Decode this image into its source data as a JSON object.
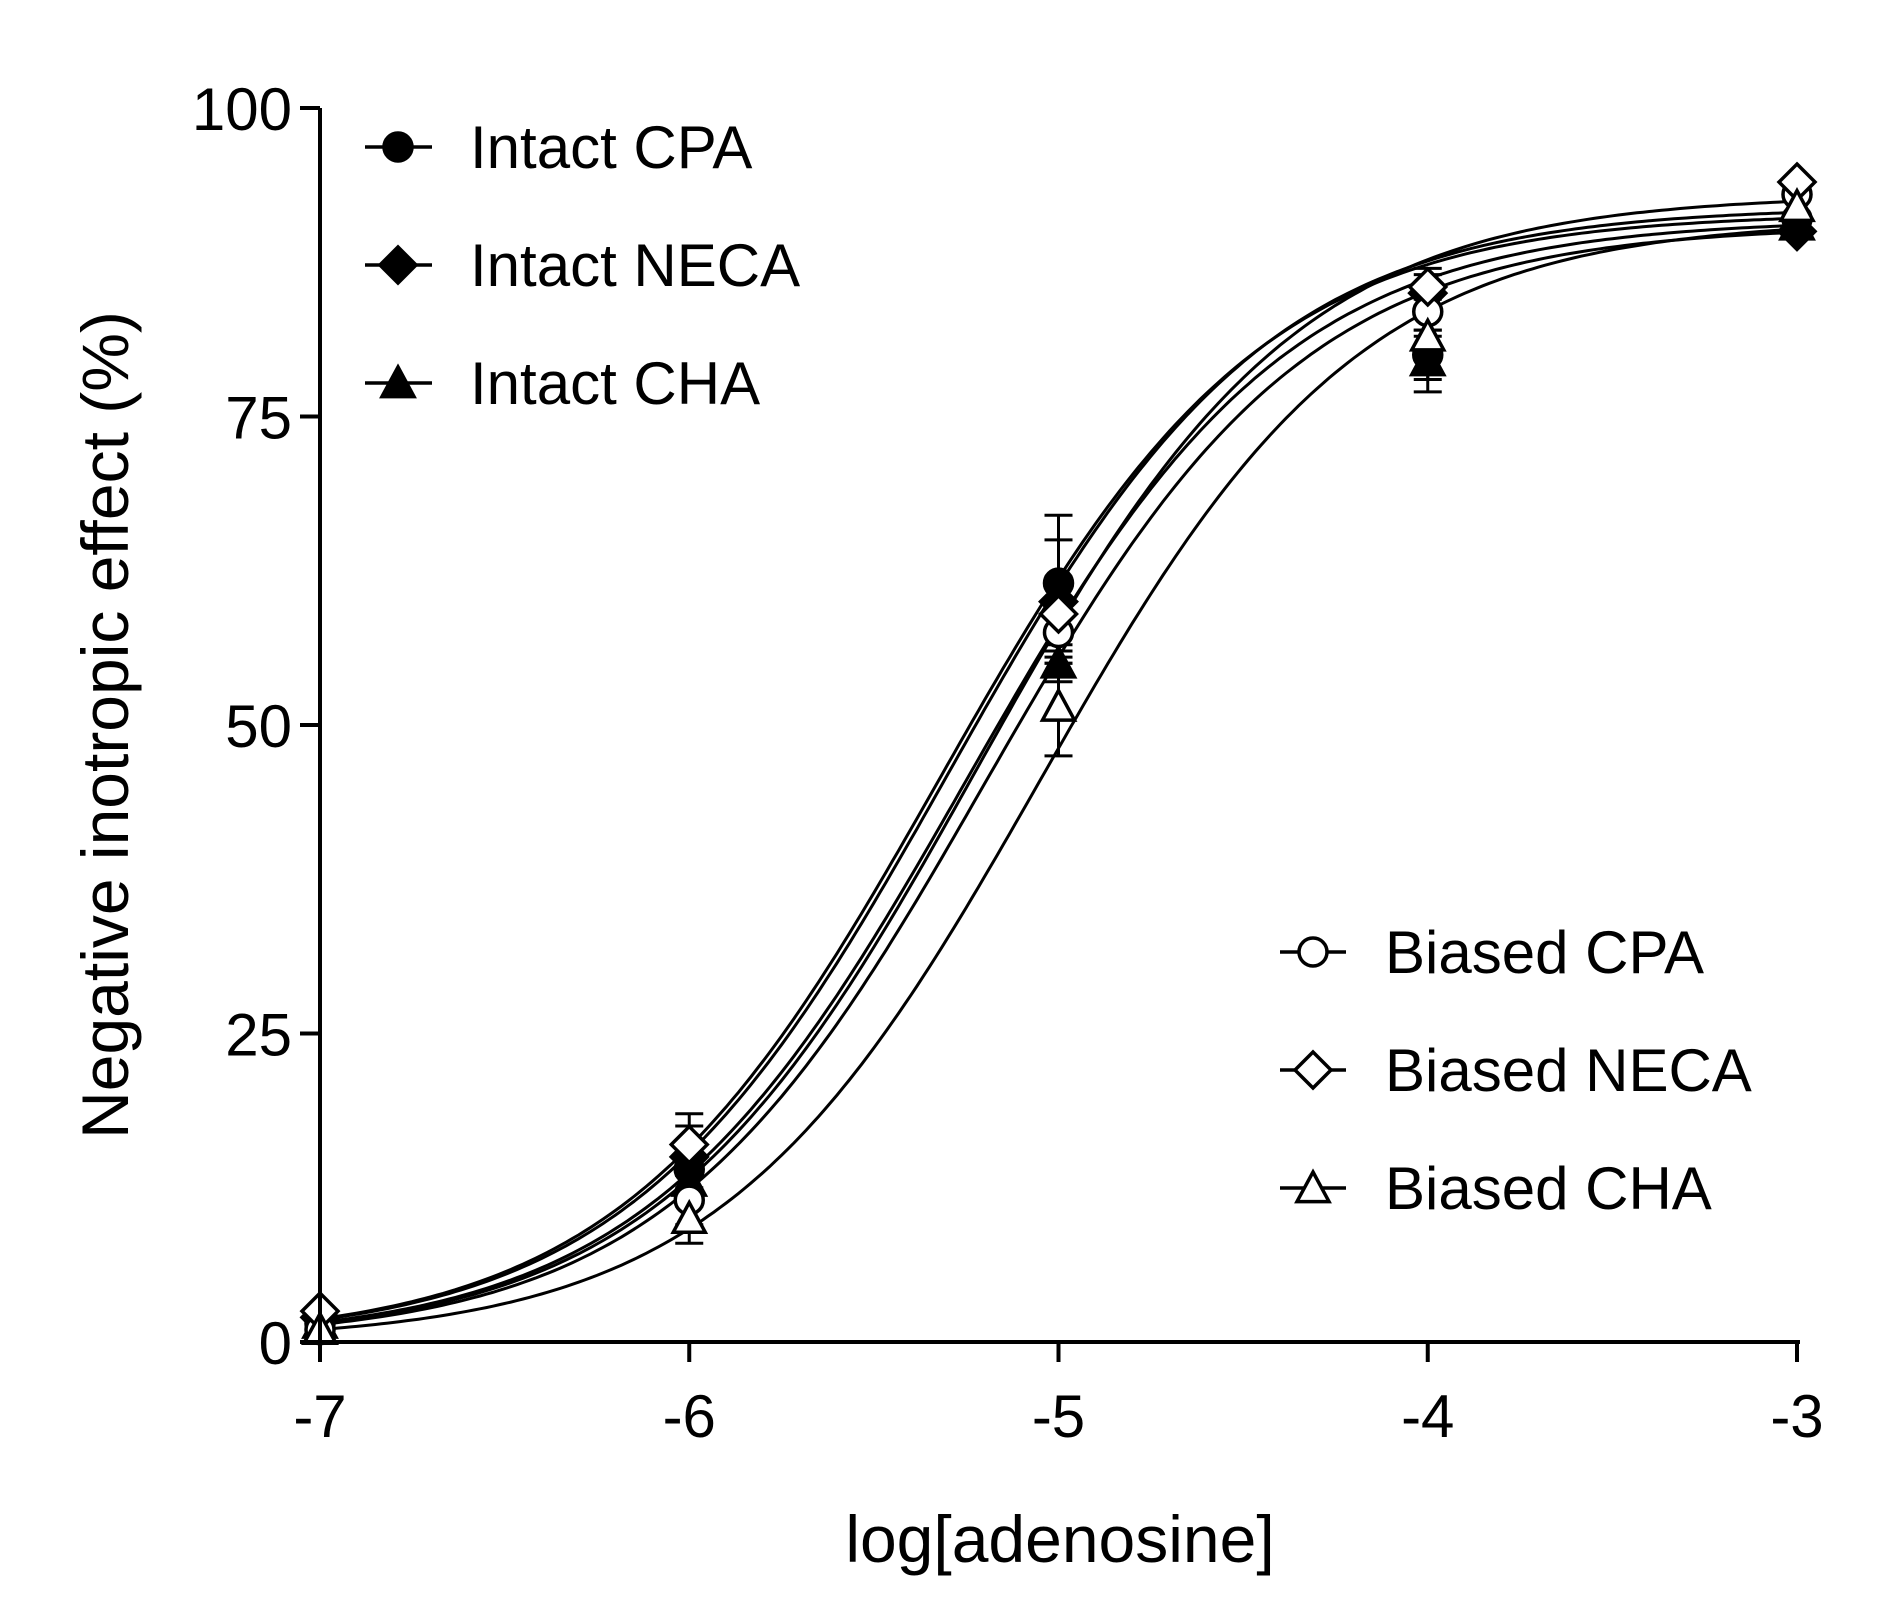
{
  "chart_data": {
    "type": "line",
    "xlabel": "log[adenosine]",
    "ylabel": "Negative inotropic effect (%)",
    "xlim": [
      -7,
      -3
    ],
    "ylim": [
      0,
      100
    ],
    "xticks": [
      -7,
      -6,
      -5,
      -4,
      -3
    ],
    "yticks": [
      0,
      25,
      50,
      75,
      100
    ],
    "xtick_labels": [
      "-7",
      "-6",
      "-5",
      "-4",
      "-3"
    ],
    "ytick_labels": [
      "0",
      "25",
      "50",
      "75",
      "100"
    ],
    "grid": false,
    "legend": [
      {
        "position": "top-left",
        "entries": [
          "Intact CPA",
          "Intact NECA",
          "Intact CHA"
        ]
      },
      {
        "position": "bottom-right",
        "entries": [
          "Biased CPA",
          "Biased NECA",
          "Biased CHA"
        ]
      }
    ],
    "x": [
      -7,
      -6,
      -5,
      -4,
      -3
    ],
    "series": [
      {
        "name": "Intact CPA",
        "marker": "circle",
        "filled": true,
        "values": [
          1.5,
          14,
          61.5,
          80,
          91
        ],
        "errors": [
          0,
          2,
          5.5,
          2,
          0
        ],
        "fit": {
          "bottom": 0,
          "top": 91,
          "logEC50": -5.25,
          "hill": 1.0
        }
      },
      {
        "name": "Intact NECA",
        "marker": "diamond",
        "filled": true,
        "values": [
          2,
          15,
          60,
          85,
          90
        ],
        "errors": [
          0,
          2.5,
          5,
          1.5,
          0
        ],
        "fit": {
          "bottom": 0,
          "top": 92,
          "logEC50": -5.3,
          "hill": 1.0
        }
      },
      {
        "name": "Intact CHA",
        "marker": "triangle",
        "filled": true,
        "values": [
          1.5,
          13,
          55,
          79.5,
          90.5
        ],
        "errors": [
          0,
          2,
          1.5,
          2.5,
          0
        ],
        "fit": {
          "bottom": 0,
          "top": 90.5,
          "logEC50": -5.2,
          "hill": 1.0
        }
      },
      {
        "name": "Biased CPA",
        "marker": "circle",
        "filled": false,
        "values": [
          1,
          11.5,
          57.5,
          83.5,
          93
        ],
        "errors": [
          0,
          2,
          2.5,
          2,
          0
        ],
        "fit": {
          "bottom": 0,
          "top": 93,
          "logEC50": -5.22,
          "hill": 1.0
        }
      },
      {
        "name": "Biased NECA",
        "marker": "diamond",
        "filled": false,
        "values": [
          2.5,
          16,
          59,
          85.5,
          94
        ],
        "errors": [
          0,
          2.5,
          3,
          1.5,
          0
        ],
        "fit": {
          "bottom": 0,
          "top": 91.5,
          "logEC50": -5.32,
          "hill": 1.0
        }
      },
      {
        "name": "Biased CHA",
        "marker": "triangle",
        "filled": false,
        "values": [
          1,
          10,
          51.5,
          81.5,
          92
        ],
        "errors": [
          0,
          2,
          4,
          3,
          0
        ],
        "fit": {
          "bottom": 0,
          "top": 91,
          "logEC50": -5.05,
          "hill": 1.0
        }
      }
    ]
  }
}
